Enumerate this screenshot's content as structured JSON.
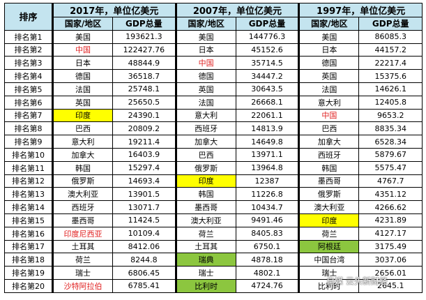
{
  "header": {
    "rank_label": "排序",
    "periods": [
      {
        "title": "2017年，单位亿美元",
        "country_label": "国家/地区",
        "gdp_label": "GDP总量"
      },
      {
        "title": "2007年，单位亿美元",
        "country_label": "国家/地区",
        "gdp_label": "GDP总量"
      },
      {
        "title": "1997年，单位亿美元",
        "country_label": "国家/地区",
        "gdp_label": "GDP总量"
      }
    ]
  },
  "colors": {
    "highlight_red": "#e02020",
    "highlight_yellow": "#ffff00",
    "highlight_green": "#8cc63f",
    "header_bg": "#c4e4ef"
  },
  "rows": [
    {
      "rank": "排名第1",
      "cells": [
        {
          "country": "美国",
          "gdp": "193621.3"
        },
        {
          "country": "美国",
          "gdp": "144776.3"
        },
        {
          "country": "美国",
          "gdp": "86085.3"
        }
      ]
    },
    {
      "rank": "排名第2",
      "cells": [
        {
          "country": "中国",
          "gdp": "122427.76",
          "style": "red"
        },
        {
          "country": "日本",
          "gdp": "45152.6"
        },
        {
          "country": "日本",
          "gdp": "44157.2"
        }
      ]
    },
    {
      "rank": "排名第3",
      "cells": [
        {
          "country": "日本",
          "gdp": "48844.9"
        },
        {
          "country": "中国",
          "gdp": "35714.5",
          "style": "red"
        },
        {
          "country": "德国",
          "gdp": "22217.4"
        }
      ]
    },
    {
      "rank": "排名第4",
      "cells": [
        {
          "country": "德国",
          "gdp": "36518.7"
        },
        {
          "country": "德国",
          "gdp": "34447.2"
        },
        {
          "country": "英国",
          "gdp": "15375.6"
        }
      ]
    },
    {
      "rank": "排名第5",
      "cells": [
        {
          "country": "法国",
          "gdp": "25748.1"
        },
        {
          "country": "英国",
          "gdp": "30643.5"
        },
        {
          "country": "法国",
          "gdp": "14626.1"
        }
      ]
    },
    {
      "rank": "排名第6",
      "cells": [
        {
          "country": "英国",
          "gdp": "25650.5"
        },
        {
          "country": "法国",
          "gdp": "26668.1"
        },
        {
          "country": "意大利",
          "gdp": "12405.8"
        }
      ]
    },
    {
      "rank": "排名第7",
      "cells": [
        {
          "country": "印度",
          "gdp": "24390.1",
          "style": "yellow"
        },
        {
          "country": "意大利",
          "gdp": "22061.1"
        },
        {
          "country": "中国",
          "gdp": "9653.2",
          "style": "red"
        }
      ]
    },
    {
      "rank": "排名第8",
      "cells": [
        {
          "country": "巴西",
          "gdp": "20809.2"
        },
        {
          "country": "西班牙",
          "gdp": "14813.9"
        },
        {
          "country": "巴西",
          "gdp": "8835.34"
        }
      ]
    },
    {
      "rank": "排名第9",
      "cells": [
        {
          "country": "意大利",
          "gdp": "19211.4"
        },
        {
          "country": "加拿大",
          "gdp": "14649.8"
        },
        {
          "country": "加拿大",
          "gdp": "6528.34"
        }
      ]
    },
    {
      "rank": "排名第10",
      "cells": [
        {
          "country": "加拿大",
          "gdp": "16403.9"
        },
        {
          "country": "巴西",
          "gdp": "13971.1"
        },
        {
          "country": "西班牙",
          "gdp": "5879.67"
        }
      ]
    },
    {
      "rank": "排名第11",
      "cells": [
        {
          "country": "韩国",
          "gdp": "15297.4"
        },
        {
          "country": "俄罗斯",
          "gdp": "13964.8"
        },
        {
          "country": "韩国",
          "gdp": "5575.47"
        }
      ]
    },
    {
      "rank": "排名第12",
      "cells": [
        {
          "country": "俄罗斯",
          "gdp": "14693.4"
        },
        {
          "country": "印度",
          "gdp": "12387",
          "style": "yellow"
        },
        {
          "country": "墨西哥",
          "gdp": "4767.7"
        }
      ]
    },
    {
      "rank": "排名第13",
      "cells": [
        {
          "country": "澳大利亚",
          "gdp": "13901.5"
        },
        {
          "country": "韩国",
          "gdp": "11226.8"
        },
        {
          "country": "俄罗斯",
          "gdp": "4351.12"
        }
      ]
    },
    {
      "rank": "排名第14",
      "cells": [
        {
          "country": "西班牙",
          "gdp": "13071.7"
        },
        {
          "country": "墨西哥",
          "gdp": "10434.7"
        },
        {
          "country": "澳大利亚",
          "gdp": "4266.62"
        }
      ]
    },
    {
      "rank": "排名第15",
      "cells": [
        {
          "country": "墨西哥",
          "gdp": "11424.5"
        },
        {
          "country": "澳大利亚",
          "gdp": "9491.46"
        },
        {
          "country": "印度",
          "gdp": "4231.89",
          "style": "yellow"
        }
      ]
    },
    {
      "rank": "排名第16",
      "cells": [
        {
          "country": "印度尼西亚",
          "gdp": "10109.4",
          "style": "red"
        },
        {
          "country": "荷兰",
          "gdp": "8405.83"
        },
        {
          "country": "荷兰",
          "gdp": "4127.17"
        }
      ]
    },
    {
      "rank": "排名第17",
      "cells": [
        {
          "country": "土耳其",
          "gdp": "8412.06"
        },
        {
          "country": "土耳其",
          "gdp": "6750.1"
        },
        {
          "country": "阿根廷",
          "gdp": "3175.49",
          "style": "green"
        }
      ]
    },
    {
      "rank": "排名第18",
      "cells": [
        {
          "country": "荷兰",
          "gdp": "8244.8"
        },
        {
          "country": "瑞典",
          "gdp": "4878.18",
          "style": "green"
        },
        {
          "country": "中国台湾",
          "gdp": "3037.06"
        }
      ]
    },
    {
      "rank": "排名第19",
      "cells": [
        {
          "country": "瑞士",
          "gdp": "6806.45"
        },
        {
          "country": "瑞士",
          "gdp": "4802.1"
        },
        {
          "country": "瑞士",
          "gdp": "2656.01"
        }
      ]
    },
    {
      "rank": "排名第20",
      "cells": [
        {
          "country": "沙特阿拉伯",
          "gdp": "6785.41",
          "style": "red"
        },
        {
          "country": "比利时",
          "gdp": "4724.76",
          "style": "green"
        },
        {
          "country": "比利时",
          "gdp": "2645.1"
        }
      ]
    }
  ],
  "watermark": "自媒 云头新财经"
}
